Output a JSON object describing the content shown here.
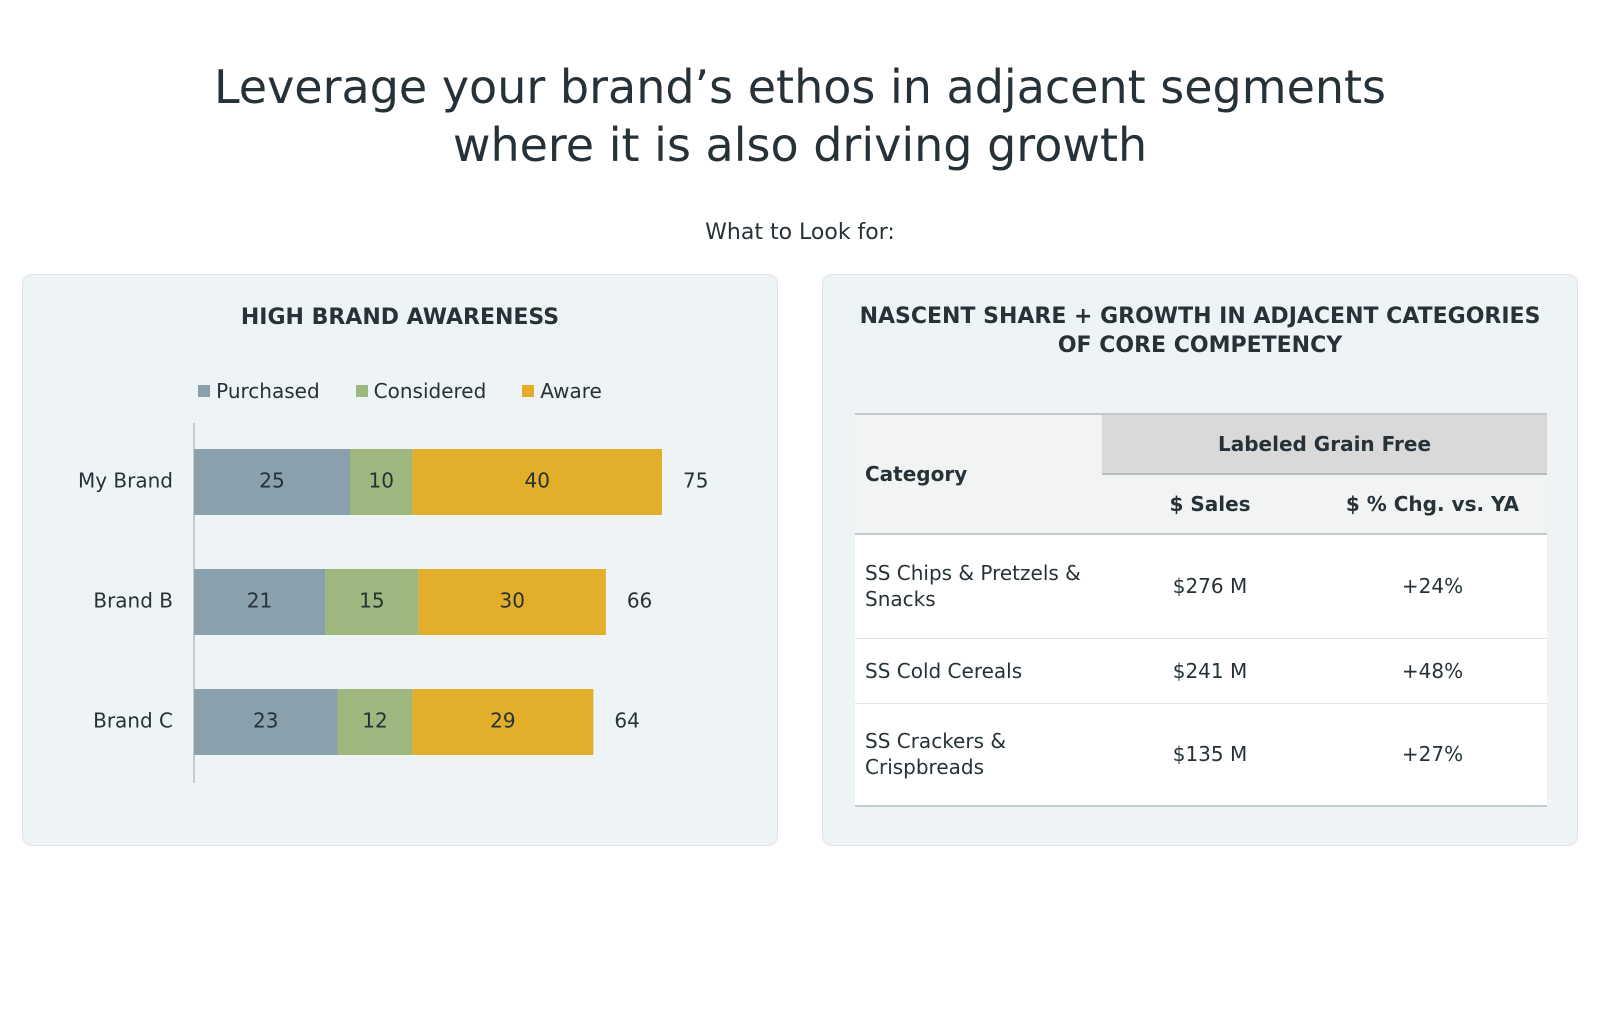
{
  "headline": {
    "line1": "Leverage your brand’s ethos in adjacent segments",
    "line2": "where it is also driving growth"
  },
  "subhead": "What to Look for:",
  "left_panel": {
    "title": "HIGH BRAND AWARENESS"
  },
  "right_panel": {
    "title_line1": "NASCENT SHARE + GROWTH IN ADJACENT CATEGORIES",
    "title_line2": "OF CORE COMPETENCY",
    "table": {
      "category_header": "Category",
      "group_header": "Labeled Grain Free",
      "col_sales": "$ Sales",
      "col_chg": "$ % Chg. vs. YA",
      "rows": [
        {
          "category": "SS Chips & Pretzels & Snacks",
          "sales": "$276 M",
          "chg": "+24%"
        },
        {
          "category": "SS Cold Cereals",
          "sales": "$241 M",
          "chg": "+48%"
        },
        {
          "category": "SS Crackers & Crispbreads",
          "sales": "$135 M",
          "chg": "+27%"
        }
      ]
    }
  },
  "chart_data": {
    "type": "bar",
    "orientation": "horizontal",
    "stacked": true,
    "title": "HIGH BRAND AWARENESS",
    "legend_position": "top",
    "categories": [
      "My Brand",
      "Brand B",
      "Brand C"
    ],
    "series": [
      {
        "name": "Purchased",
        "color": "#8aa0ac",
        "values": [
          25,
          21,
          23
        ]
      },
      {
        "name": "Considered",
        "color": "#9db77e",
        "values": [
          10,
          15,
          12
        ]
      },
      {
        "name": "Aware",
        "color": "#e3ae29",
        "values": [
          40,
          30,
          29
        ]
      }
    ],
    "totals": [
      75,
      66,
      64
    ],
    "xlim": [
      0,
      100
    ],
    "grid": false
  }
}
